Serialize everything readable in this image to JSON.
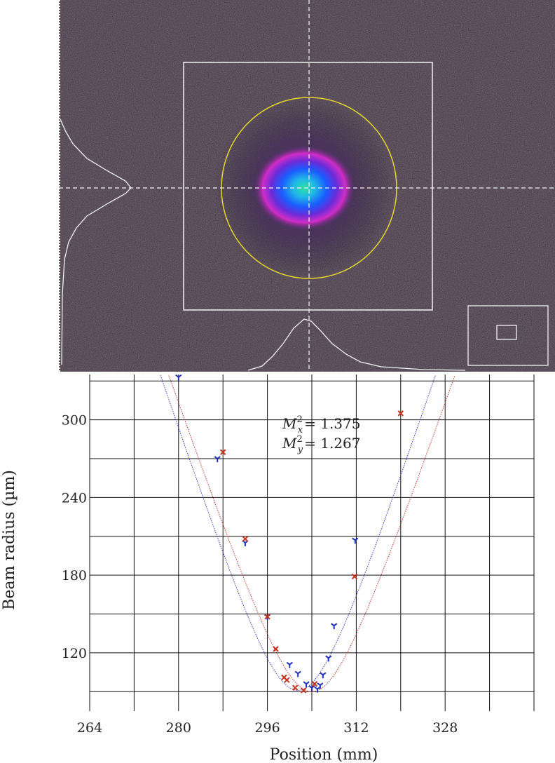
{
  "chart_data": [
    {
      "type": "image",
      "description_kind": "beam-profile",
      "colors": {
        "background": "#3a2c45",
        "roi_box": "#f2f2f2",
        "ellipse": "#e6d92a",
        "crosshair": "#f2f2f2",
        "profile_curve": "#f2f2f2",
        "core_peak": "#2fe0a0",
        "core_mid": "#1a5cff",
        "core_outer": "#d12cc8"
      }
    },
    {
      "type": "scatter",
      "xlabel": "Position (mm)",
      "ylabel": "Beam radius (µm)",
      "xlim": [
        264,
        344
      ],
      "ylim": [
        75,
        335
      ],
      "x_ticks": [
        264,
        280,
        296,
        312,
        328
      ],
      "y_ticks": [
        120,
        180,
        240,
        300
      ],
      "x_tick_labels": [
        "264",
        "280",
        "296",
        "312",
        "328"
      ],
      "y_tick_labels": [
        "120",
        "180",
        "240",
        "300"
      ],
      "grid": true,
      "annotations": {
        "mx_prefix": "M",
        "mx_sub": "x",
        "mx_value": "= 1.375",
        "my_prefix": "M",
        "my_sub": "y",
        "my_value": "= 1.267",
        "sup": "2"
      },
      "series": [
        {
          "marker": "tri_down",
          "color": "#1f2fbf",
          "x": [
            280,
            287,
            292,
            296,
            300,
            301.5,
            303,
            304,
            305,
            305.5,
            306,
            307,
            308,
            311.8
          ],
          "y": [
            333,
            270,
            205,
            148,
            111,
            104,
            96,
            93,
            92,
            95,
            103,
            116,
            141,
            207
          ]
        },
        {
          "marker": "x",
          "color": "#c8321e",
          "x": [
            288,
            292,
            296,
            297.5,
            299,
            299.5,
            301,
            302.5,
            304.5,
            311.7,
            320
          ],
          "y": [
            275,
            208,
            148,
            123,
            101,
            99,
            93,
            91,
            96,
            179,
            305
          ]
        }
      ],
      "fits": [
        {
          "color": "#2a3acf",
          "w0": 91,
          "z0": 301.5,
          "zr": 7.0
        },
        {
          "color": "#c8321e",
          "w0": 90,
          "z0": 304.0,
          "zr": 7.2
        }
      ]
    }
  ]
}
